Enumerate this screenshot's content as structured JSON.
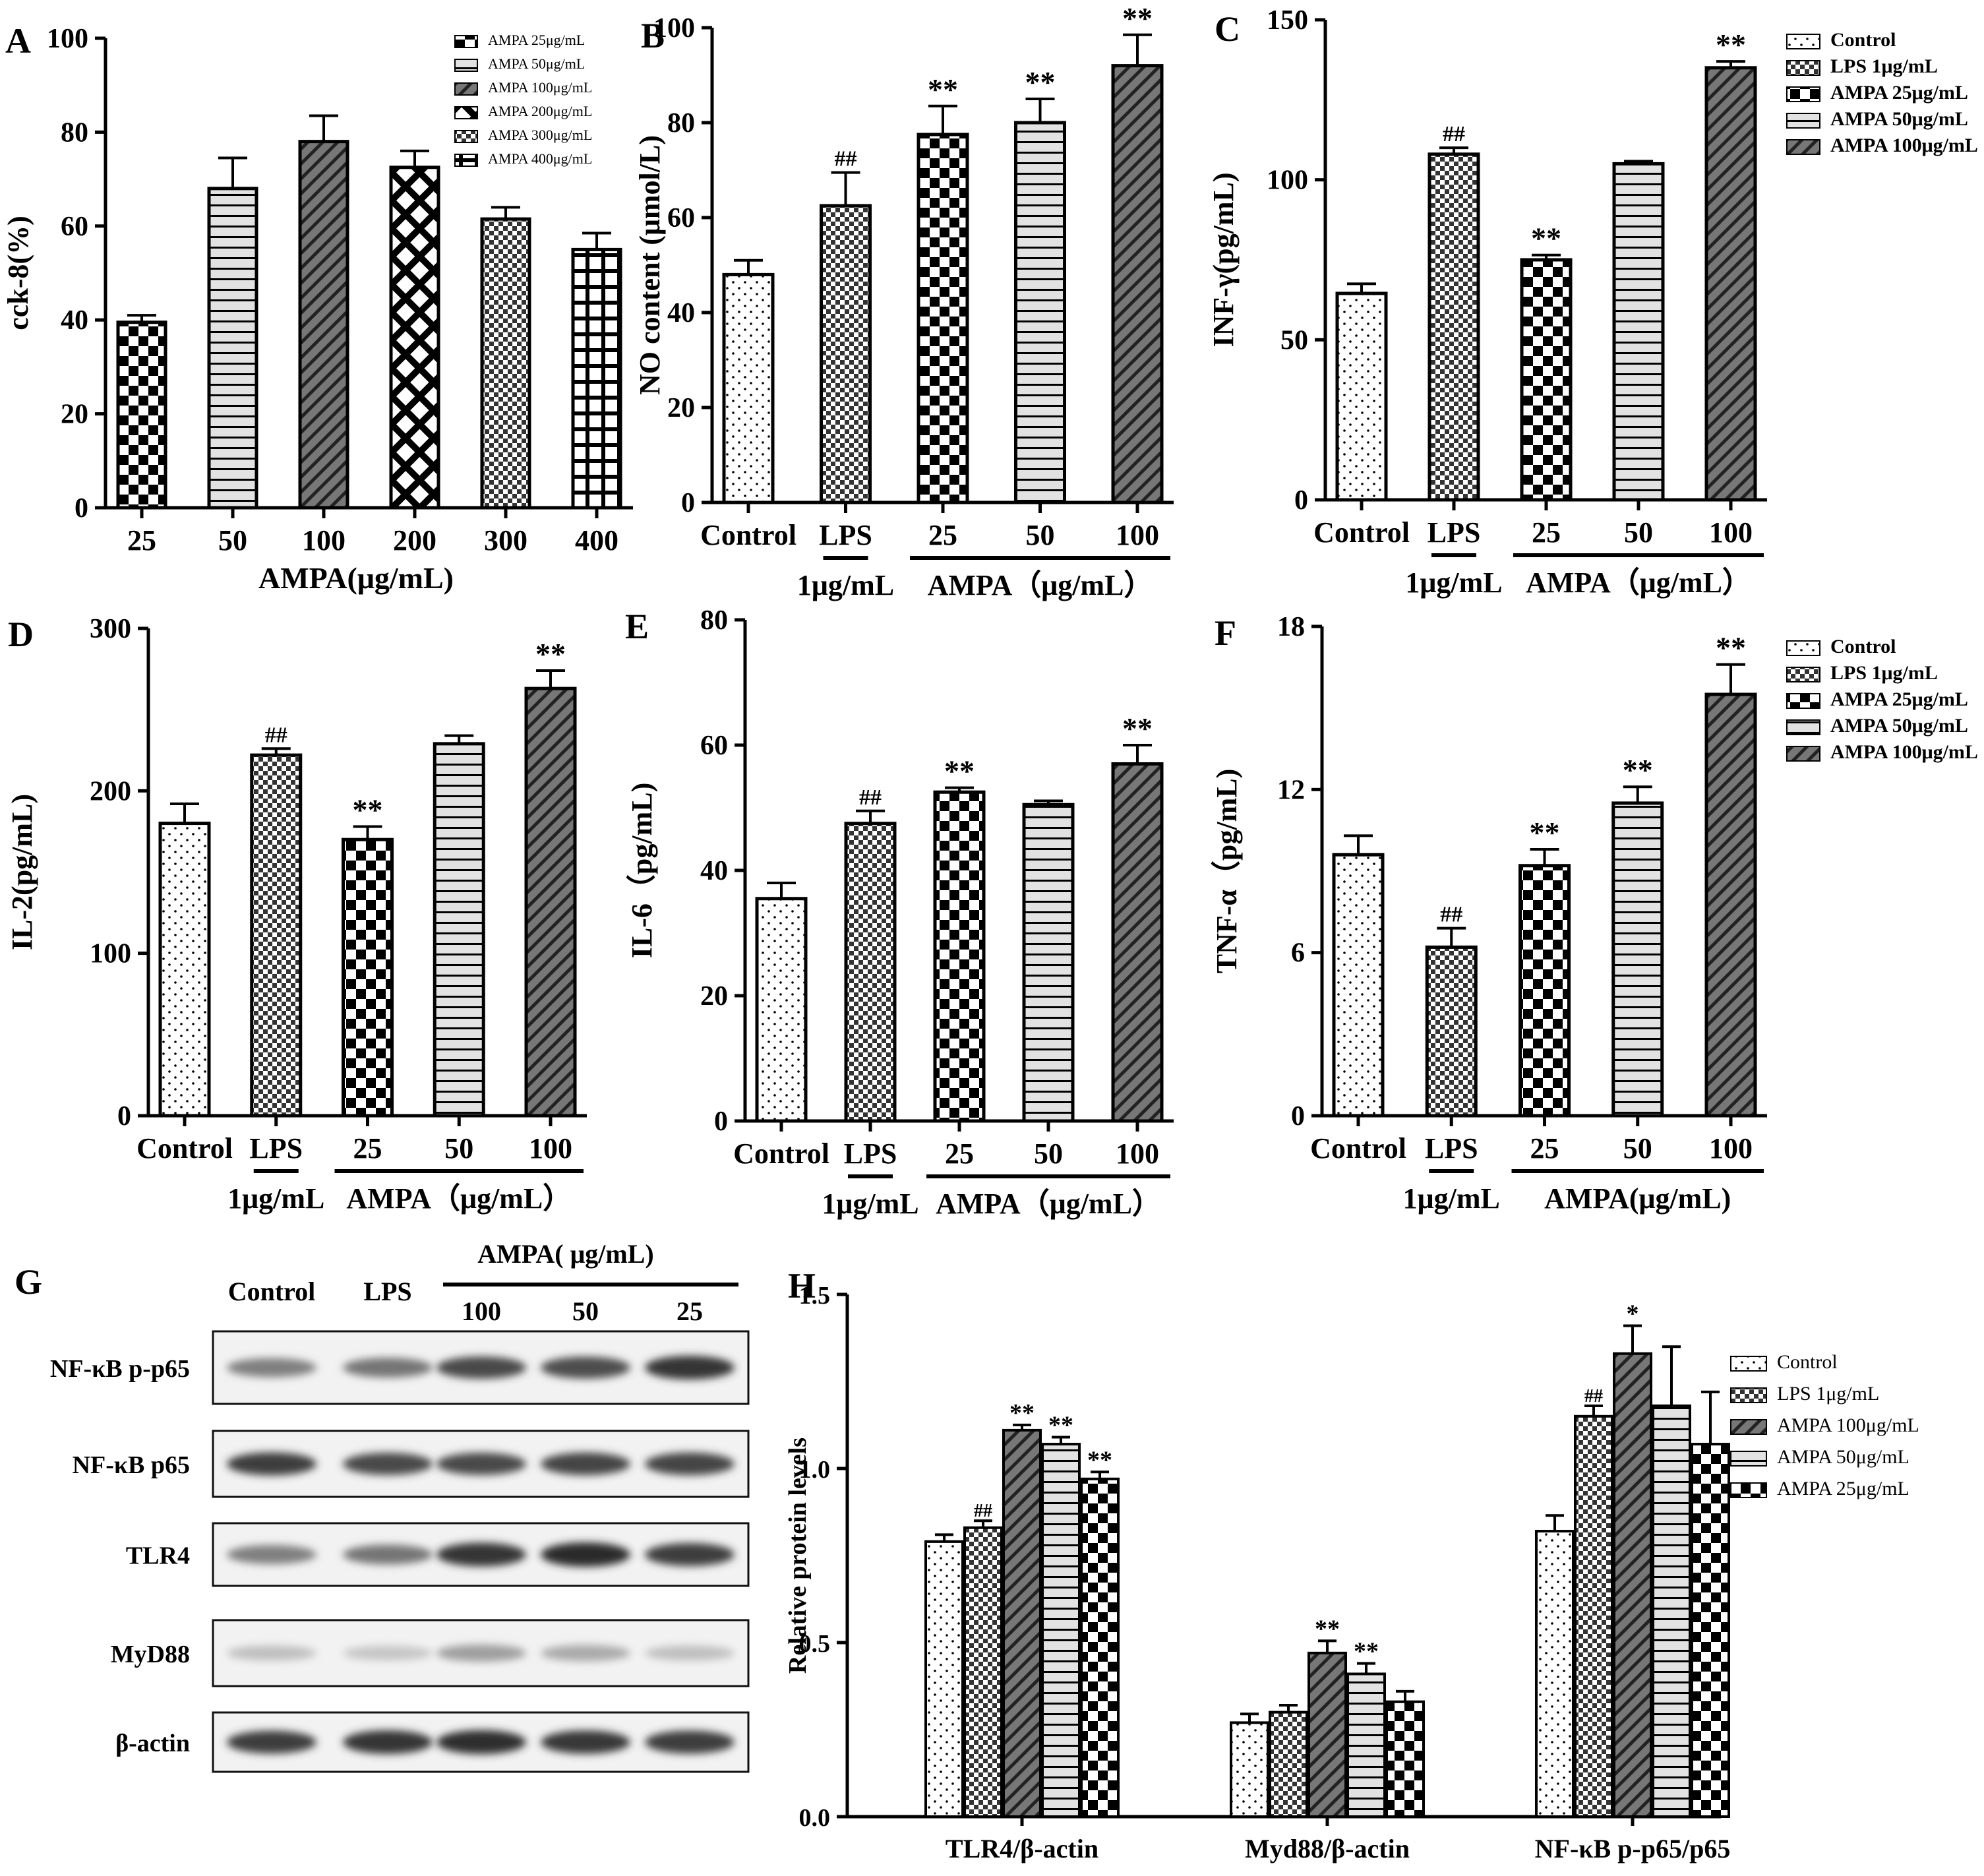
{
  "patterns": {
    "Control": "dots",
    "LPS": "checkfine",
    "A25": "checkbig",
    "A50": "hlines",
    "A100": "diag",
    "A200": "crosshatch",
    "A300": "checkfine",
    "A400": "grid"
  },
  "colors": {
    "ink": "#000000",
    "gray": "#bdbdbd",
    "bg": "#ffffff"
  },
  "chart_data": [
    {
      "id": "A",
      "type": "bar",
      "panel_label": "A",
      "title": "",
      "ylabel": "cck-8(%)",
      "xlabel": "AMPA(μg/mL)",
      "ylim": [
        0,
        100
      ],
      "yticks": [
        0,
        20,
        40,
        60,
        80,
        100
      ],
      "categories": [
        "25",
        "50",
        "100",
        "200",
        "300",
        "400"
      ],
      "values": [
        39.5,
        68,
        78,
        72.5,
        61.5,
        55
      ],
      "errors": [
        1.5,
        6.5,
        5.5,
        3.5,
        2.5,
        3.5
      ],
      "patterns": [
        "A25",
        "A50",
        "A100",
        "A200",
        "A300",
        "A400"
      ],
      "annotations": [
        "",
        "",
        "",
        "",
        "",
        ""
      ],
      "legend": [
        "AMPA 25μg/mL",
        "AMPA 50μg/mL",
        "AMPA 100μg/mL",
        "AMPA 200μg/mL",
        "AMPA 300μg/mL",
        "AMPA 400μg/mL"
      ],
      "legend_patterns": [
        "A25",
        "A50",
        "A100",
        "A200",
        "A300",
        "A400"
      ],
      "legend_position": "top-right"
    },
    {
      "id": "B",
      "type": "bar",
      "panel_label": "B",
      "title": "",
      "ylabel": "NO content (μmol/L)",
      "ylim": [
        0,
        100
      ],
      "yticks": [
        0,
        20,
        40,
        60,
        80,
        100
      ],
      "categories": [
        "Control",
        "LPS",
        "25",
        "50",
        "100"
      ],
      "values": [
        48,
        62.5,
        77.5,
        80,
        92
      ],
      "errors": [
        3,
        7,
        6,
        5,
        6.5
      ],
      "patterns": [
        "Control",
        "LPS",
        "A25",
        "A50",
        "A100"
      ],
      "annotations": [
        "",
        "##",
        "**",
        "**",
        "**"
      ],
      "group_labels": [
        {
          "text": "1μg/mL",
          "from": 1,
          "to": 1
        },
        {
          "text": "AMPA（μg/mL）",
          "from": 2,
          "to": 4
        }
      ]
    },
    {
      "id": "C",
      "type": "bar",
      "panel_label": "C",
      "title": "",
      "ylabel": "INF-γ(pg/mL)",
      "ylim": [
        0,
        150
      ],
      "yticks": [
        0,
        50,
        100,
        150
      ],
      "categories": [
        "Control",
        "LPS",
        "25",
        "50",
        "100"
      ],
      "values": [
        64.5,
        108,
        75,
        105,
        135
      ],
      "errors": [
        3,
        2,
        1.5,
        0.8,
        2
      ],
      "patterns": [
        "Control",
        "LPS",
        "A25",
        "A50",
        "A100"
      ],
      "annotations": [
        "",
        "##",
        "**",
        "",
        "**"
      ],
      "group_labels": [
        {
          "text": "1μg/mL",
          "from": 1,
          "to": 1
        },
        {
          "text": "AMPA（μg/mL）",
          "from": 2,
          "to": 4
        }
      ],
      "legend": [
        "Control",
        "LPS 1μg/mL",
        "AMPA 25μg/mL",
        "AMPA 50μg/mL",
        "AMPA 100μg/mL"
      ],
      "legend_patterns": [
        "Control",
        "LPS",
        "A25",
        "A50",
        "A100"
      ],
      "legend_position": "right"
    },
    {
      "id": "D",
      "type": "bar",
      "panel_label": "D",
      "title": "",
      "ylabel": "IL-2(pg/mL)",
      "ylim": [
        0,
        300
      ],
      "yticks": [
        0,
        100,
        200,
        300
      ],
      "categories": [
        "Control",
        "LPS",
        "25",
        "50",
        "100"
      ],
      "values": [
        180,
        222,
        170,
        229,
        263
      ],
      "errors": [
        12,
        4,
        8,
        5,
        11
      ],
      "patterns": [
        "Control",
        "LPS",
        "A25",
        "A50",
        "A100"
      ],
      "annotations": [
        "",
        "##",
        "**",
        "",
        "**"
      ],
      "group_labels": [
        {
          "text": "1μg/mL",
          "from": 1,
          "to": 1
        },
        {
          "text": "AMPA（μg/mL）",
          "from": 2,
          "to": 4
        }
      ]
    },
    {
      "id": "E",
      "type": "bar",
      "panel_label": "E",
      "title": "",
      "ylabel": "IL-6（pg/mL)",
      "ylim": [
        0,
        80
      ],
      "yticks": [
        0,
        20,
        40,
        60,
        80
      ],
      "categories": [
        "Control",
        "LPS",
        "25",
        "50",
        "100"
      ],
      "values": [
        35.5,
        47.5,
        52.5,
        50.5,
        57
      ],
      "errors": [
        2.5,
        2,
        0.7,
        0.6,
        3
      ],
      "patterns": [
        "Control",
        "LPS",
        "A25",
        "A50",
        "A100"
      ],
      "annotations": [
        "",
        "##",
        "**",
        "",
        "**"
      ],
      "group_labels": [
        {
          "text": "1μg/mL",
          "from": 1,
          "to": 1
        },
        {
          "text": "AMPA（μg/mL）",
          "from": 2,
          "to": 4
        }
      ]
    },
    {
      "id": "F",
      "type": "bar",
      "panel_label": "F",
      "title": "",
      "ylabel": "TNF-α（pg/mL)",
      "ylim": [
        0,
        18
      ],
      "yticks": [
        0,
        6,
        12,
        18
      ],
      "categories": [
        "Control",
        "LPS",
        "25",
        "50",
        "100"
      ],
      "values": [
        9.6,
        6.2,
        9.2,
        11.5,
        15.5
      ],
      "errors": [
        0.7,
        0.7,
        0.6,
        0.6,
        1.1
      ],
      "patterns": [
        "Control",
        "LPS",
        "A25",
        "A50",
        "A100"
      ],
      "annotations": [
        "",
        "##",
        "**",
        "**",
        "**"
      ],
      "group_labels": [
        {
          "text": "1μg/mL",
          "from": 1,
          "to": 1
        },
        {
          "text": "AMPA(μg/mL)",
          "from": 2,
          "to": 4
        }
      ],
      "legend": [
        "Control",
        "LPS 1μg/mL",
        "AMPA 25μg/mL",
        "AMPA 50μg/mL",
        "AMPA 100μg/mL"
      ],
      "legend_patterns": [
        "Control",
        "LPS",
        "A25",
        "A50",
        "A100"
      ],
      "legend_position": "right"
    },
    {
      "id": "H",
      "type": "bar",
      "panel_label": "H",
      "title": "",
      "ylabel": "Relative protein levels",
      "ylim": [
        0,
        1.5
      ],
      "yticks": [
        "0.0",
        "0.5",
        "1.0",
        "1.5"
      ],
      "categories": [
        "TLR4/β-actin",
        "Myd88/β-actin",
        "NF-κB p-p65/p65"
      ],
      "series": [
        {
          "name": "Control",
          "pattern": "Control",
          "values": [
            0.79,
            0.27,
            0.82
          ],
          "errors": [
            0.02,
            0.025,
            0.045
          ],
          "annotations": [
            "",
            "",
            ""
          ]
        },
        {
          "name": "LPS 1μg/mL",
          "pattern": "LPS",
          "values": [
            0.83,
            0.3,
            1.15
          ],
          "errors": [
            0.02,
            0.02,
            0.03
          ],
          "annotations": [
            "##",
            "",
            "##"
          ]
        },
        {
          "name": "AMPA 100μg/mL",
          "pattern": "A100",
          "values": [
            1.11,
            0.47,
            1.33
          ],
          "errors": [
            0.015,
            0.035,
            0.08
          ],
          "annotations": [
            "**",
            "**",
            "*"
          ]
        },
        {
          "name": "AMPA 50μg/mL",
          "pattern": "A50",
          "values": [
            1.07,
            0.41,
            1.18
          ],
          "errors": [
            0.02,
            0.03,
            0.17
          ],
          "annotations": [
            "**",
            "**",
            ""
          ]
        },
        {
          "name": "AMPA 25μg/mL",
          "pattern": "A25",
          "values": [
            0.97,
            0.33,
            1.07
          ],
          "errors": [
            0.02,
            0.03,
            0.15
          ],
          "annotations": [
            "**",
            "",
            ""
          ]
        }
      ],
      "legend_position": "right"
    }
  ],
  "blot": {
    "panel_label": "G",
    "lanes": [
      "Control",
      "LPS",
      "100",
      "50",
      "25"
    ],
    "ampa_header": "AMPA( μg/mL)",
    "rows": [
      {
        "label": "NF-κB p-p65",
        "intensity": [
          0.55,
          0.6,
          0.8,
          0.78,
          0.9
        ]
      },
      {
        "label": "NF-κB p65",
        "intensity": [
          0.85,
          0.8,
          0.8,
          0.82,
          0.82
        ]
      },
      {
        "label": "TLR4",
        "intensity": [
          0.55,
          0.6,
          0.9,
          0.95,
          0.85
        ]
      },
      {
        "label": "MyD88",
        "intensity": [
          0.25,
          0.22,
          0.4,
          0.35,
          0.25
        ]
      },
      {
        "label": "β-actin",
        "intensity": [
          0.85,
          0.9,
          0.92,
          0.88,
          0.86
        ]
      }
    ]
  }
}
